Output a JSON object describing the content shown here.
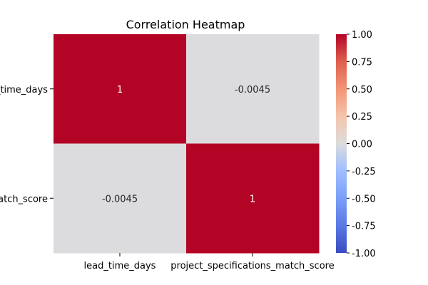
{
  "chart_data": {
    "type": "heatmap",
    "title": "Correlation Heatmap",
    "x_labels": [
      "lead_time_days",
      "project_specifications_match_score"
    ],
    "y_labels": [
      "lead_time_days",
      "project_specifications_match_score"
    ],
    "values": [
      [
        1,
        -0.0045
      ],
      [
        -0.0045,
        1
      ]
    ],
    "annotations": [
      [
        "1",
        "-0.0045"
      ],
      [
        "-0.0045",
        "1"
      ]
    ],
    "colormap": "coolwarm",
    "vmin": -1.0,
    "vmax": 1.0,
    "colorbar_ticks": [
      "1.00",
      "0.75",
      "0.50",
      "0.25",
      "0.00",
      "-0.25",
      "-0.50",
      "-0.75",
      "-1.00"
    ],
    "colorbar_tick_values": [
      1.0,
      0.75,
      0.5,
      0.25,
      0.0,
      -0.25,
      -0.5,
      -0.75,
      -1.0
    ],
    "colors": {
      "max": "#b40426",
      "mid": "#dddddd",
      "min": "#3b4cc0"
    }
  }
}
